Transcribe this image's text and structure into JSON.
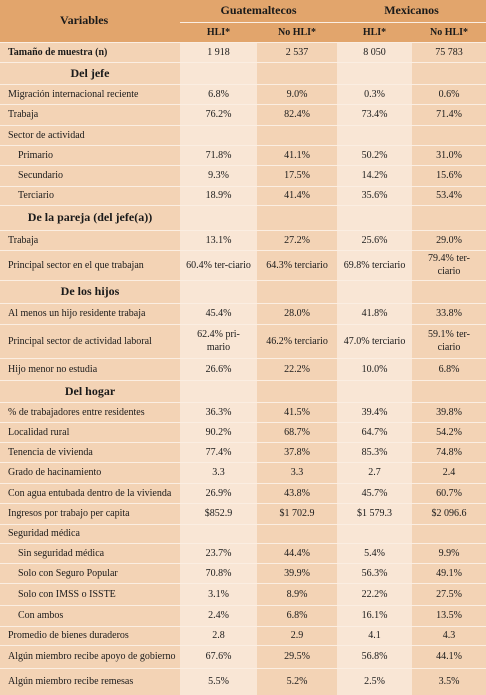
{
  "header": {
    "variables": "Variables",
    "groups": [
      "Guatemaltecos",
      "Mexicanos"
    ],
    "subheaders": [
      "HLI*",
      "No HLI*",
      "HLI*",
      "No HLI*"
    ]
  },
  "rows": [
    {
      "label": "Tamaño de muestra (n)",
      "values": [
        "1 918",
        "2 537",
        "8 050",
        "75 783"
      ]
    },
    {
      "section": "Del jefe"
    },
    {
      "label": "Migración internacional reciente",
      "values": [
        "6.8%",
        "9.0%",
        "0.3%",
        "0.6%"
      ]
    },
    {
      "label": "Trabaja",
      "values": [
        "76.2%",
        "82.4%",
        "73.4%",
        "71.4%"
      ]
    },
    {
      "label": "Sector de actividad"
    },
    {
      "label": "Primario",
      "values": [
        "71.8%",
        "41.1%",
        "50.2%",
        "31.0%"
      ]
    },
    {
      "label": "Secundario",
      "values": [
        "9.3%",
        "17.5%",
        "14.2%",
        "15.6%"
      ]
    },
    {
      "label": "Terciario",
      "values": [
        "18.9%",
        "41.4%",
        "35.6%",
        "53.4%"
      ]
    },
    {
      "section": "De la pareja (del jefe(a))"
    },
    {
      "label": "Trabaja",
      "values": [
        "13.1%",
        "27.2%",
        "25.6%",
        "29.0%"
      ]
    },
    {
      "label": "Principal sector en el que trabajan",
      "values": [
        "60.4% ter-ciario",
        "64.3% terciario",
        "69.8% terciario",
        "79.4% ter-ciario"
      ]
    },
    {
      "section": "De los hijos"
    },
    {
      "label": "Al menos un hijo residente trabaja",
      "values": [
        "45.4%",
        "28.0%",
        "41.8%",
        "33.8%"
      ]
    },
    {
      "label": "Principal sector de actividad laboral",
      "values": [
        "62.4% pri-mario",
        "46.2% terciario",
        "47.0% terciario",
        "59.1% ter-ciario"
      ]
    },
    {
      "label": "Hijo menor no estudia",
      "values": [
        "26.6%",
        "22.2%",
        "10.0%",
        "6.8%"
      ]
    },
    {
      "section": "Del hogar"
    },
    {
      "label": "% de trabajadores entre residentes",
      "values": [
        "36.3%",
        "41.5%",
        "39.4%",
        "39.8%"
      ]
    },
    {
      "label": "Localidad rural",
      "values": [
        "90.2%",
        "68.7%",
        "64.7%",
        "54.2%"
      ]
    },
    {
      "label": "Tenencia de vivienda",
      "values": [
        "77.4%",
        "37.8%",
        "85.3%",
        "74.8%"
      ]
    },
    {
      "label": "Grado de hacinamiento",
      "values": [
        "3.3",
        "3.3",
        "2.7",
        "2.4"
      ]
    },
    {
      "label": "Con agua entubada dentro de la vivienda",
      "values": [
        "26.9%",
        "43.8%",
        "45.7%",
        "60.7%"
      ]
    },
    {
      "label": "Ingresos por trabajo per capita",
      "values": [
        "$852.9",
        "$1 702.9",
        "$1 579.3",
        "$2 096.6"
      ]
    },
    {
      "label": "Seguridad médica"
    },
    {
      "label": "Sin seguridad médica",
      "values": [
        "23.7%",
        "44.4%",
        "5.4%",
        "9.9%"
      ]
    },
    {
      "label": "Solo con Seguro Popular",
      "values": [
        "70.8%",
        "39.9%",
        "56.3%",
        "49.1%"
      ]
    },
    {
      "label": "Solo con IMSS o ISSTE",
      "values": [
        "3.1%",
        "8.9%",
        "22.2%",
        "27.5%"
      ]
    },
    {
      "label": "Con ambos",
      "values": [
        "2.4%",
        "6.8%",
        "16.1%",
        "13.5%"
      ]
    },
    {
      "label": "Promedio de bienes duraderos",
      "values": [
        "2.8",
        "2.9",
        "4.1",
        "4.3"
      ]
    },
    {
      "label": "Algún miembro recibe apoyo de gobierno",
      "values": [
        "67.6%",
        "29.5%",
        "56.8%",
        "44.1%"
      ]
    },
    {
      "label": "Algún miembro recibe remesas",
      "values": [
        "5.5%",
        "5.2%",
        "2.5%",
        "3.5%"
      ]
    }
  ]
}
